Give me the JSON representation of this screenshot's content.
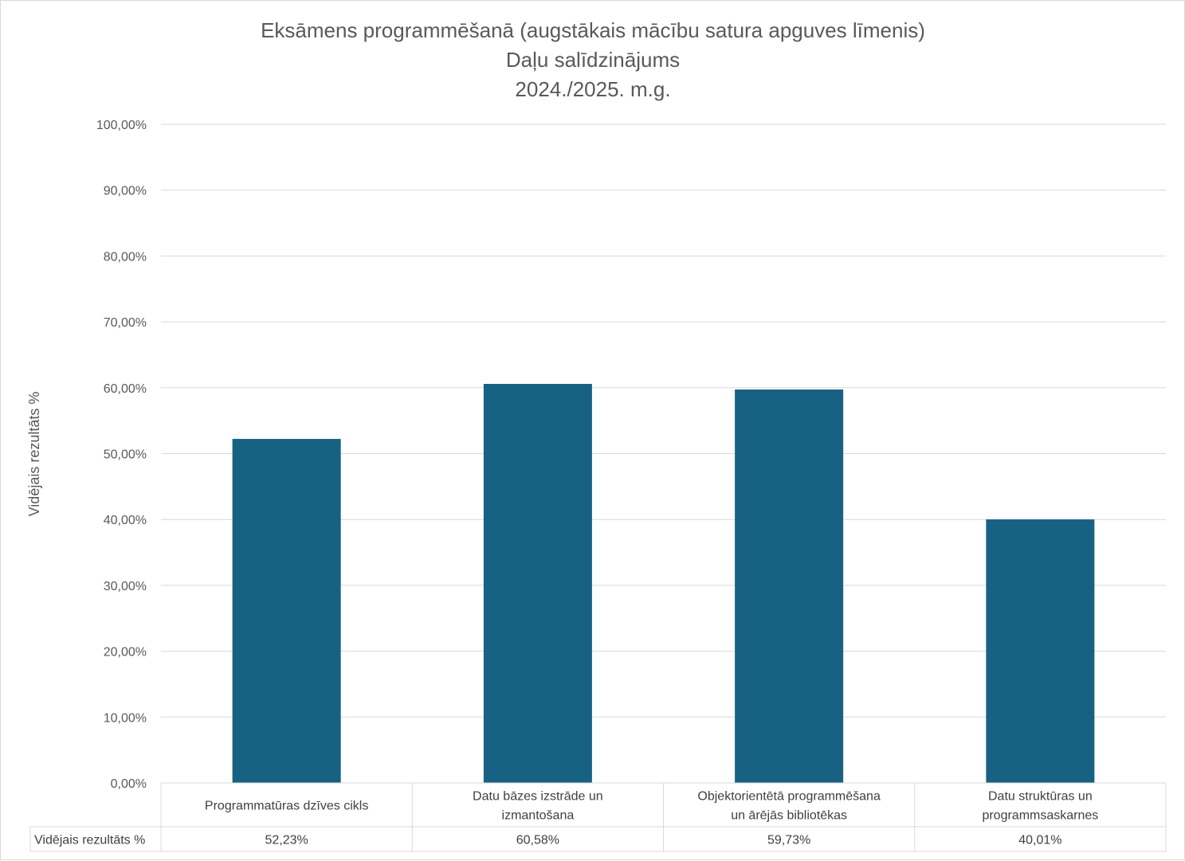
{
  "chart_data": {
    "type": "bar",
    "title": [
      "Eksāmens programmēšanā (augstākais mācību satura apguves līmenis)",
      "Daļu salīdzinājums",
      "2024./2025. m.g."
    ],
    "ylabel": "Vidējais rezultāts %",
    "xlabel": "",
    "ylim": [
      0,
      100
    ],
    "yticks": [
      0,
      10,
      20,
      30,
      40,
      50,
      60,
      70,
      80,
      90,
      100
    ],
    "ytick_labels": [
      "0,00%",
      "10,00%",
      "20,00%",
      "30,00%",
      "40,00%",
      "50,00%",
      "60,00%",
      "70,00%",
      "80,00%",
      "90,00%",
      "100,00%"
    ],
    "grid": true,
    "bar_color": "#176183",
    "categories": [
      [
        "Programmatūras dzīves cikls"
      ],
      [
        "Datu bāzes izstrāde un",
        "izmantošana"
      ],
      [
        "Objektorientētā programmēšana",
        "un ārējās bibliotēkas"
      ],
      [
        "Datu struktūras un",
        "programmsaskarnes"
      ]
    ],
    "series": [
      {
        "name": "Vidējais rezultāts %",
        "values": [
          52.23,
          60.58,
          59.73,
          40.01
        ],
        "value_labels": [
          "52,23%",
          "60,58%",
          "59,73%",
          "40,01%"
        ]
      }
    ]
  }
}
